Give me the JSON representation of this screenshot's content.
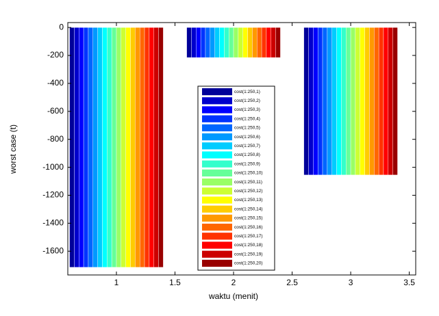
{
  "chart_data": {
    "type": "bar",
    "x": [
      1,
      2,
      3
    ],
    "xlabel": "waktu (menit)",
    "ylabel": "worst case (t)",
    "xlim": [
      0.585,
      3.555
    ],
    "ylim": [
      -1770,
      35
    ],
    "xticks": [
      1,
      1.5,
      2,
      2.5,
      3,
      3.5
    ],
    "yticks": [
      0,
      -200,
      -400,
      -600,
      -800,
      -1000,
      -1200,
      -1400,
      -1600
    ],
    "series": [
      {
        "name": "cost(1:250,1)",
        "color": "#000099",
        "values": [
          -1715,
          -215,
          -1055
        ]
      },
      {
        "name": "cost(1:250,2)",
        "color": "#0000cc",
        "values": [
          -1715,
          -215,
          -1055
        ]
      },
      {
        "name": "cost(1:250,3)",
        "color": "#0000ff",
        "values": [
          -1715,
          -215,
          -1055
        ]
      },
      {
        "name": "cost(1:250,4)",
        "color": "#0033ff",
        "values": [
          -1715,
          -215,
          -1055
        ]
      },
      {
        "name": "cost(1:250,5)",
        "color": "#0066ff",
        "values": [
          -1715,
          -215,
          -1055
        ]
      },
      {
        "name": "cost(1:250,6)",
        "color": "#0099ff",
        "values": [
          -1715,
          -215,
          -1055
        ]
      },
      {
        "name": "cost(1:250,7)",
        "color": "#00ccff",
        "values": [
          -1715,
          -215,
          -1055
        ]
      },
      {
        "name": "cost(1:250,8)",
        "color": "#00ffff",
        "values": [
          -1715,
          -215,
          -1055
        ]
      },
      {
        "name": "cost(1:250,9)",
        "color": "#33ffcc",
        "values": [
          -1715,
          -215,
          -1055
        ]
      },
      {
        "name": "cost(1:250,10)",
        "color": "#66ff99",
        "values": [
          -1715,
          -215,
          -1055
        ]
      },
      {
        "name": "cost(1:250,11)",
        "color": "#99ff66",
        "values": [
          -1715,
          -215,
          -1055
        ]
      },
      {
        "name": "cost(1:250,12)",
        "color": "#ccff33",
        "values": [
          -1715,
          -215,
          -1055
        ]
      },
      {
        "name": "cost(1:250,13)",
        "color": "#ffff00",
        "values": [
          -1715,
          -215,
          -1055
        ]
      },
      {
        "name": "cost(1:250,14)",
        "color": "#ffcc00",
        "values": [
          -1715,
          -215,
          -1055
        ]
      },
      {
        "name": "cost(1:250,15)",
        "color": "#ff9900",
        "values": [
          -1715,
          -215,
          -1055
        ]
      },
      {
        "name": "cost(1:250,16)",
        "color": "#ff6600",
        "values": [
          -1715,
          -215,
          -1055
        ]
      },
      {
        "name": "cost(1:250,17)",
        "color": "#ff3300",
        "values": [
          -1715,
          -215,
          -1055
        ]
      },
      {
        "name": "cost(1:250,18)",
        "color": "#ff0000",
        "values": [
          -1715,
          -215,
          -1055
        ]
      },
      {
        "name": "cost(1:250,19)",
        "color": "#cc0000",
        "values": [
          -1715,
          -215,
          -1055
        ]
      },
      {
        "name": "cost(1:250,20)",
        "color": "#990000",
        "values": [
          -1715,
          -215,
          -1055
        ]
      }
    ]
  }
}
